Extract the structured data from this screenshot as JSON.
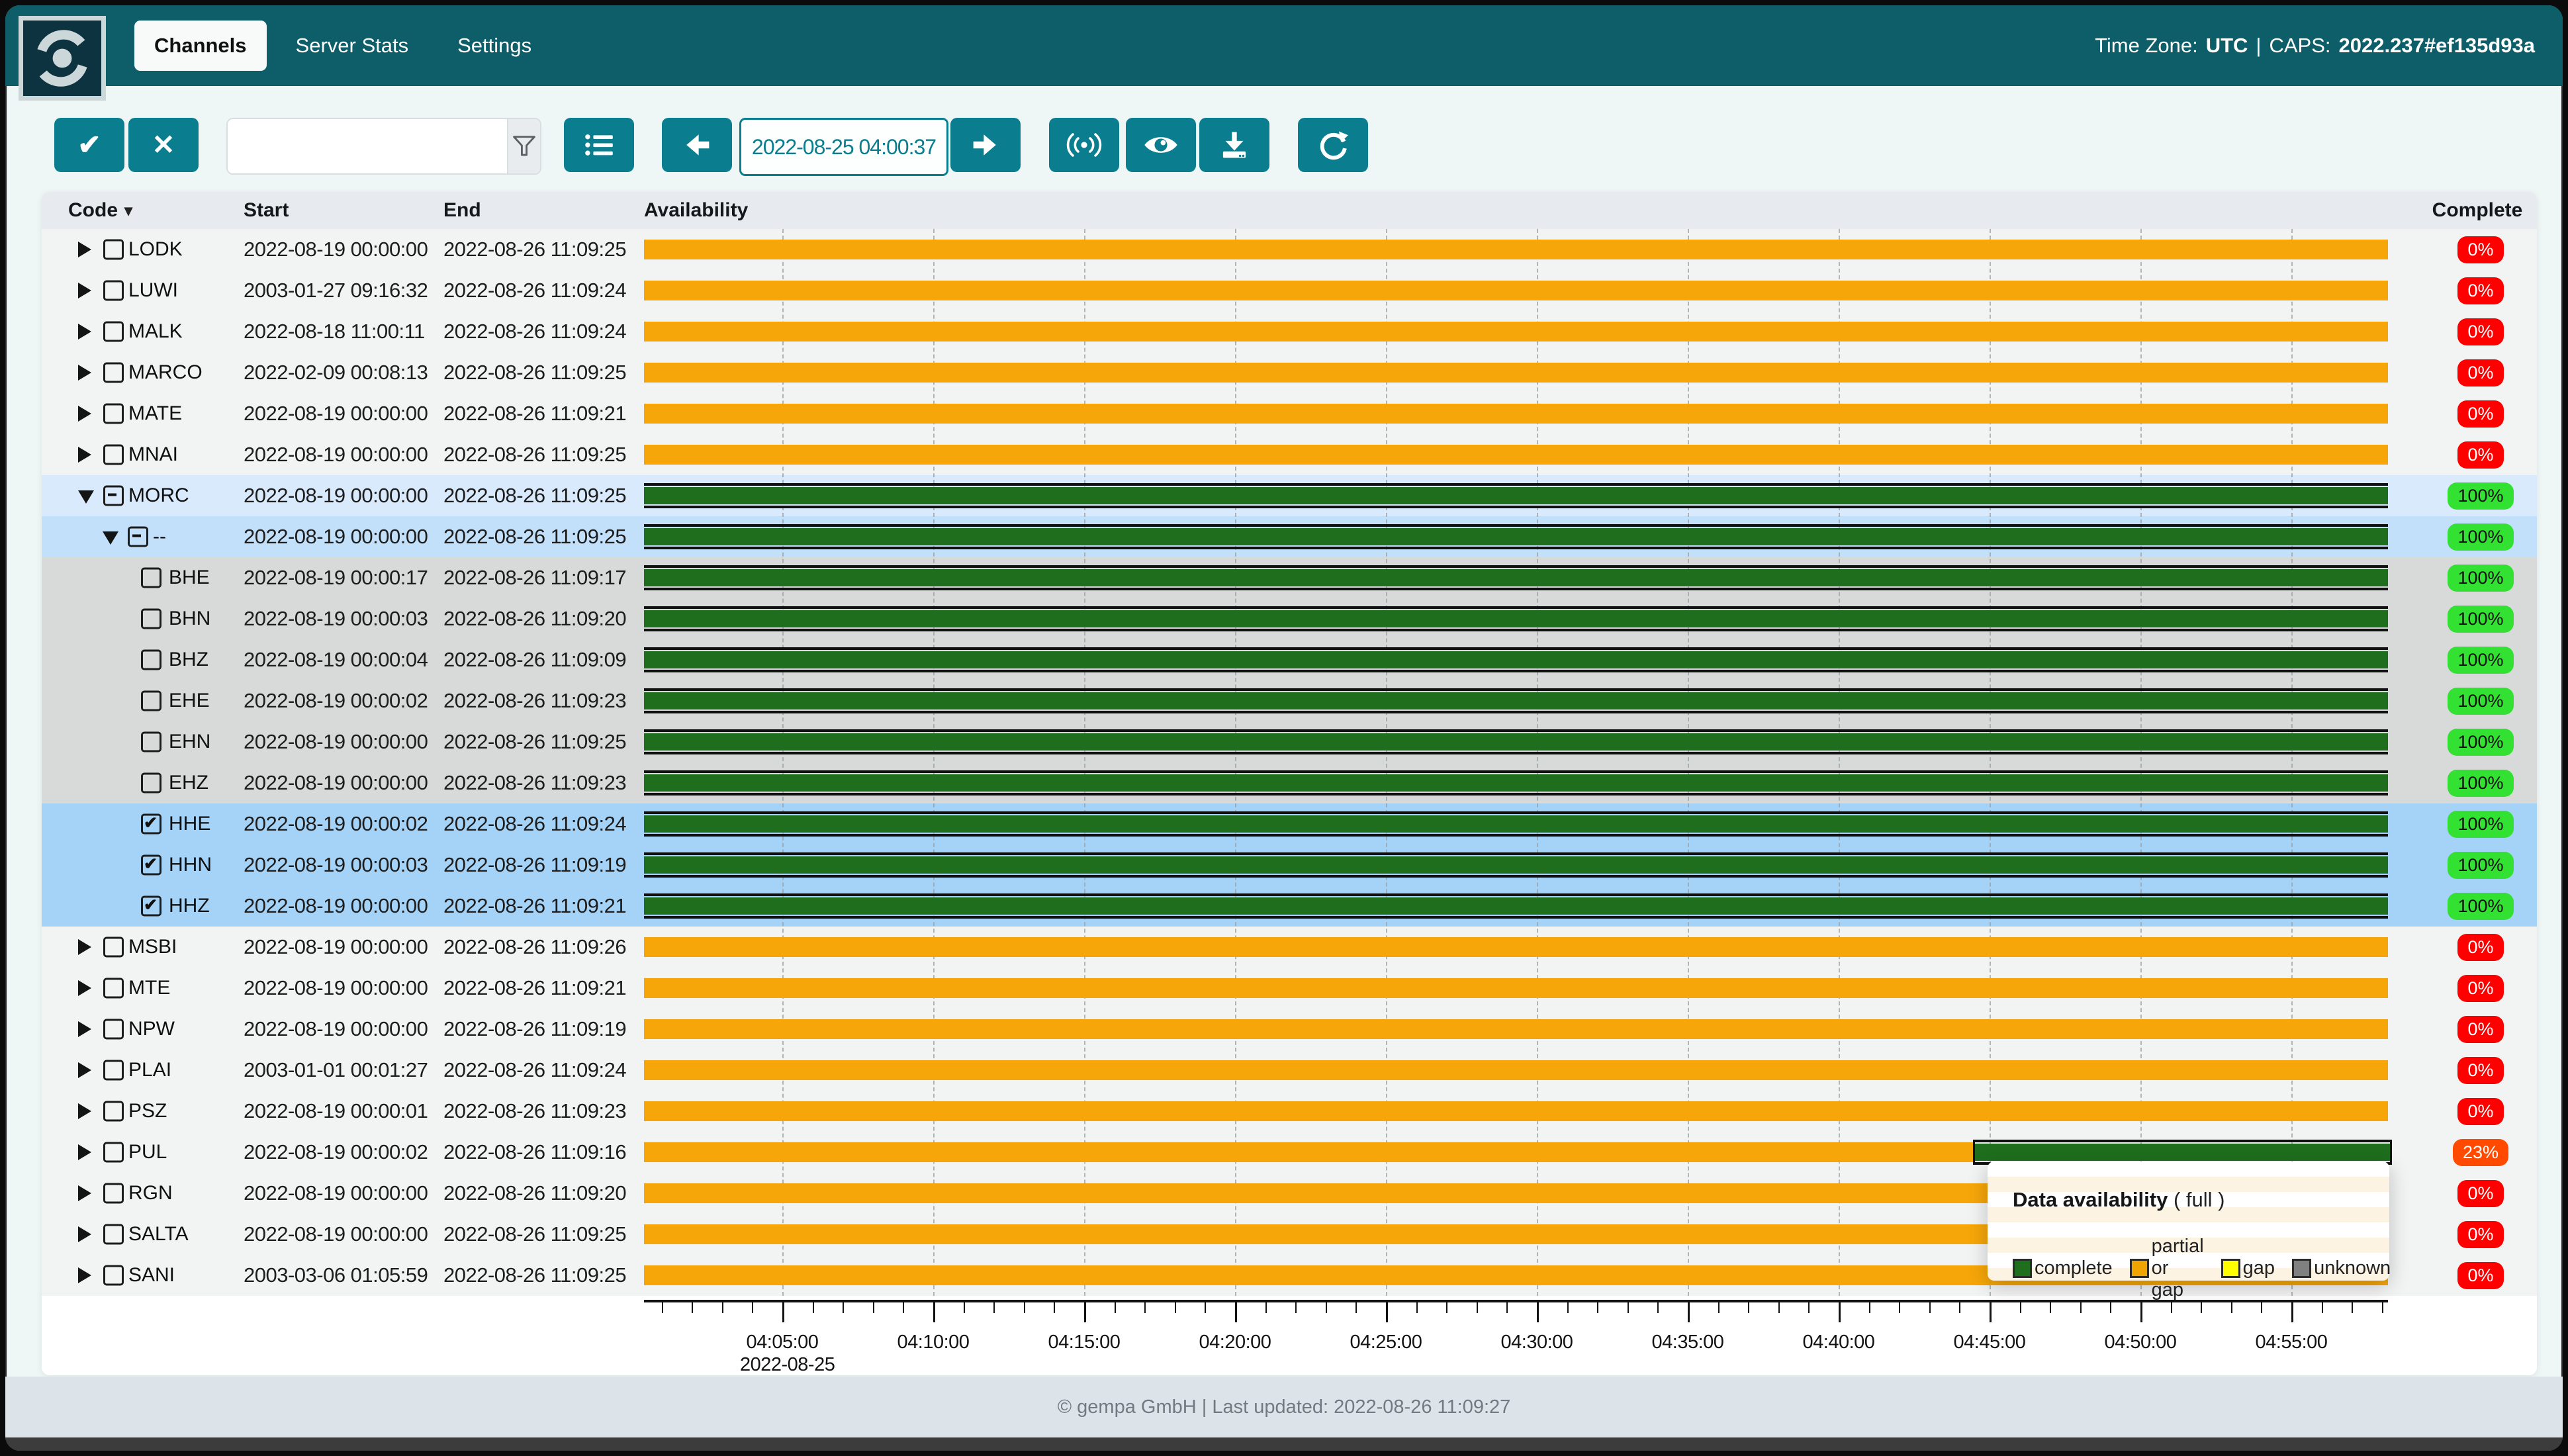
{
  "navbar": {
    "tabs": [
      {
        "label": "Channels",
        "active": true
      },
      {
        "label": "Server Stats",
        "active": false
      },
      {
        "label": "Settings",
        "active": false
      }
    ],
    "timezone_label": "Time Zone:",
    "timezone_value": "UTC",
    "separator": "|",
    "caps_label": "CAPS:",
    "caps_value": "2022.237#ef135d93a"
  },
  "toolbar": {
    "confirm_glyph": "✔",
    "cancel_glyph": "✕",
    "search_value": "",
    "search_placeholder": "",
    "datetime_value": "2022-08-25 04:00:37"
  },
  "table": {
    "columns": {
      "code": "Code",
      "start": "Start",
      "end": "End",
      "availability": "Availability",
      "complete": "Complete"
    },
    "rows": [
      {
        "code": "LODK",
        "start": "2022-08-19 00:00:00",
        "end": "2022-08-26 11:09:25",
        "complete": "0%",
        "badge": "red",
        "level": 0,
        "caret": "right",
        "checkbox": "unchecked",
        "bg": "",
        "availability": [
          {
            "state": "partial or gap",
            "from": 0,
            "to": 1
          }
        ]
      },
      {
        "code": "LUWI",
        "start": "2003-01-27 09:16:32",
        "end": "2022-08-26 11:09:24",
        "complete": "0%",
        "badge": "red",
        "level": 0,
        "caret": "right",
        "checkbox": "unchecked",
        "bg": "",
        "availability": [
          {
            "state": "partial or gap",
            "from": 0,
            "to": 1
          }
        ]
      },
      {
        "code": "MALK",
        "start": "2022-08-18 11:00:11",
        "end": "2022-08-26 11:09:24",
        "complete": "0%",
        "badge": "red",
        "level": 0,
        "caret": "right",
        "checkbox": "unchecked",
        "bg": "",
        "availability": [
          {
            "state": "partial or gap",
            "from": 0,
            "to": 1
          }
        ]
      },
      {
        "code": "MARCO",
        "start": "2022-02-09 00:08:13",
        "end": "2022-08-26 11:09:25",
        "complete": "0%",
        "badge": "red",
        "level": 0,
        "caret": "right",
        "checkbox": "unchecked",
        "bg": "",
        "availability": [
          {
            "state": "partial or gap",
            "from": 0,
            "to": 1
          }
        ]
      },
      {
        "code": "MATE",
        "start": "2022-08-19 00:00:00",
        "end": "2022-08-26 11:09:21",
        "complete": "0%",
        "badge": "red",
        "level": 0,
        "caret": "right",
        "checkbox": "unchecked",
        "bg": "",
        "availability": [
          {
            "state": "partial or gap",
            "from": 0,
            "to": 1
          }
        ]
      },
      {
        "code": "MNAI",
        "start": "2022-08-19 00:00:00",
        "end": "2022-08-26 11:09:25",
        "complete": "0%",
        "badge": "red",
        "level": 0,
        "caret": "right",
        "checkbox": "unchecked",
        "bg": "",
        "availability": [
          {
            "state": "partial or gap",
            "from": 0,
            "to": 1
          }
        ]
      },
      {
        "code": "MORC",
        "start": "2022-08-19 00:00:00",
        "end": "2022-08-26 11:09:25",
        "complete": "100%",
        "badge": "green",
        "level": 0,
        "caret": "down",
        "checkbox": "indeterminate",
        "bg": "sel1",
        "availability": [
          {
            "state": "complete",
            "from": 0,
            "to": 1
          }
        ]
      },
      {
        "code": "--",
        "start": "2022-08-19 00:00:00",
        "end": "2022-08-26 11:09:25",
        "complete": "100%",
        "badge": "green",
        "level": 1,
        "caret": "down",
        "checkbox": "indeterminate",
        "bg": "sel2",
        "availability": [
          {
            "state": "complete",
            "from": 0,
            "to": 1
          }
        ]
      },
      {
        "code": "BHE",
        "start": "2022-08-19 00:00:17",
        "end": "2022-08-26 11:09:17",
        "complete": "100%",
        "badge": "green",
        "level": 2,
        "caret": "none",
        "checkbox": "unchecked",
        "bg": "chgrey",
        "availability": [
          {
            "state": "complete",
            "from": 0,
            "to": 1
          }
        ]
      },
      {
        "code": "BHN",
        "start": "2022-08-19 00:00:03",
        "end": "2022-08-26 11:09:20",
        "complete": "100%",
        "badge": "green",
        "level": 2,
        "caret": "none",
        "checkbox": "unchecked",
        "bg": "chgrey",
        "availability": [
          {
            "state": "complete",
            "from": 0,
            "to": 1
          }
        ]
      },
      {
        "code": "BHZ",
        "start": "2022-08-19 00:00:04",
        "end": "2022-08-26 11:09:09",
        "complete": "100%",
        "badge": "green",
        "level": 2,
        "caret": "none",
        "checkbox": "unchecked",
        "bg": "chgrey",
        "availability": [
          {
            "state": "complete",
            "from": 0,
            "to": 1
          }
        ]
      },
      {
        "code": "EHE",
        "start": "2022-08-19 00:00:02",
        "end": "2022-08-26 11:09:23",
        "complete": "100%",
        "badge": "green",
        "level": 2,
        "caret": "none",
        "checkbox": "unchecked",
        "bg": "chgrey",
        "availability": [
          {
            "state": "complete",
            "from": 0,
            "to": 1
          }
        ]
      },
      {
        "code": "EHN",
        "start": "2022-08-19 00:00:00",
        "end": "2022-08-26 11:09:25",
        "complete": "100%",
        "badge": "green",
        "level": 2,
        "caret": "none",
        "checkbox": "unchecked",
        "bg": "chgrey",
        "availability": [
          {
            "state": "complete",
            "from": 0,
            "to": 1
          }
        ]
      },
      {
        "code": "EHZ",
        "start": "2022-08-19 00:00:00",
        "end": "2022-08-26 11:09:23",
        "complete": "100%",
        "badge": "green",
        "level": 2,
        "caret": "none",
        "checkbox": "unchecked",
        "bg": "chgrey",
        "availability": [
          {
            "state": "complete",
            "from": 0,
            "to": 1
          }
        ]
      },
      {
        "code": "HHE",
        "start": "2022-08-19 00:00:02",
        "end": "2022-08-26 11:09:24",
        "complete": "100%",
        "badge": "green",
        "level": 2,
        "caret": "none",
        "checkbox": "checked",
        "bg": "chblue",
        "availability": [
          {
            "state": "complete",
            "from": 0,
            "to": 1
          }
        ]
      },
      {
        "code": "HHN",
        "start": "2022-08-19 00:00:03",
        "end": "2022-08-26 11:09:19",
        "complete": "100%",
        "badge": "green",
        "level": 2,
        "caret": "none",
        "checkbox": "checked",
        "bg": "chblue",
        "availability": [
          {
            "state": "complete",
            "from": 0,
            "to": 1
          }
        ]
      },
      {
        "code": "HHZ",
        "start": "2022-08-19 00:00:00",
        "end": "2022-08-26 11:09:21",
        "complete": "100%",
        "badge": "green",
        "level": 2,
        "caret": "none",
        "checkbox": "checked",
        "bg": "chblue",
        "availability": [
          {
            "state": "complete",
            "from": 0,
            "to": 1
          }
        ]
      },
      {
        "code": "MSBI",
        "start": "2022-08-19 00:00:00",
        "end": "2022-08-26 11:09:26",
        "complete": "0%",
        "badge": "red",
        "level": 0,
        "caret": "right",
        "checkbox": "unchecked",
        "bg": "",
        "availability": [
          {
            "state": "partial or gap",
            "from": 0,
            "to": 1
          }
        ]
      },
      {
        "code": "MTE",
        "start": "2022-08-19 00:00:00",
        "end": "2022-08-26 11:09:21",
        "complete": "0%",
        "badge": "red",
        "level": 0,
        "caret": "right",
        "checkbox": "unchecked",
        "bg": "",
        "availability": [
          {
            "state": "partial or gap",
            "from": 0,
            "to": 1
          }
        ]
      },
      {
        "code": "NPW",
        "start": "2022-08-19 00:00:00",
        "end": "2022-08-26 11:09:19",
        "complete": "0%",
        "badge": "red",
        "level": 0,
        "caret": "right",
        "checkbox": "unchecked",
        "bg": "",
        "availability": [
          {
            "state": "partial or gap",
            "from": 0,
            "to": 1
          }
        ]
      },
      {
        "code": "PLAI",
        "start": "2003-01-01 00:01:27",
        "end": "2022-08-26 11:09:24",
        "complete": "0%",
        "badge": "red",
        "level": 0,
        "caret": "right",
        "checkbox": "unchecked",
        "bg": "",
        "availability": [
          {
            "state": "partial or gap",
            "from": 0,
            "to": 1
          }
        ]
      },
      {
        "code": "PSZ",
        "start": "2022-08-19 00:00:01",
        "end": "2022-08-26 11:09:23",
        "complete": "0%",
        "badge": "red",
        "level": 0,
        "caret": "right",
        "checkbox": "unchecked",
        "bg": "",
        "availability": [
          {
            "state": "partial or gap",
            "from": 0,
            "to": 1
          }
        ]
      },
      {
        "code": "PUL",
        "start": "2022-08-19 00:00:02",
        "end": "2022-08-26 11:09:16",
        "complete": "23%",
        "badge": "orange",
        "level": 0,
        "caret": "right",
        "checkbox": "unchecked",
        "bg": "",
        "availability": [
          {
            "state": "partial or gap",
            "from": 0,
            "to": 0.762
          },
          {
            "state": "complete",
            "from": 0.762,
            "to": 1,
            "boxed": true
          }
        ]
      },
      {
        "code": "RGN",
        "start": "2022-08-19 00:00:00",
        "end": "2022-08-26 11:09:20",
        "complete": "0%",
        "badge": "red",
        "level": 0,
        "caret": "right",
        "checkbox": "unchecked",
        "bg": "",
        "availability": [
          {
            "state": "partial or gap",
            "from": 0,
            "to": 1
          }
        ]
      },
      {
        "code": "SALTA",
        "start": "2022-08-19 00:00:00",
        "end": "2022-08-26 11:09:25",
        "complete": "0%",
        "badge": "red",
        "level": 0,
        "caret": "right",
        "checkbox": "unchecked",
        "bg": "",
        "availability": [
          {
            "state": "partial or gap",
            "from": 0,
            "to": 1
          }
        ]
      },
      {
        "code": "SANI",
        "start": "2003-03-06 01:05:59",
        "end": "2022-08-26 11:09:25",
        "complete": "0%",
        "badge": "red",
        "level": 0,
        "caret": "right",
        "checkbox": "unchecked",
        "bg": "",
        "availability": [
          {
            "state": "partial or gap",
            "from": 0,
            "to": 1
          }
        ]
      }
    ]
  },
  "timeline": {
    "major_tick_labels": [
      "04:05:00",
      "04:10:00",
      "04:15:00",
      "04:20:00",
      "04:25:00",
      "04:30:00",
      "04:35:00",
      "04:40:00",
      "04:45:00",
      "04:50:00",
      "04:55:00"
    ],
    "date_label": "2022-08-25",
    "minor_tick_interval": "1 minute"
  },
  "tooltip": {
    "title": "Data availability",
    "subtitle": "( full )",
    "legend": [
      {
        "label": "complete",
        "color": "#1e6e1e"
      },
      {
        "label": "partial or gap",
        "color": "#f0a400"
      },
      {
        "label": "gap",
        "color": "#ffff00"
      },
      {
        "label": "unknown",
        "color": "#808080"
      }
    ]
  },
  "footer": {
    "text": "© gempa GmbH | Last updated: 2022-08-26 11:09:27"
  },
  "colors": {
    "navbar": "#0d5e68",
    "button": "#0a7e8e",
    "partial_bar": "#f6a609",
    "complete_bar": "#1e6e1e",
    "badge_red": "#fe0000",
    "badge_green": "#32e132",
    "badge_orange": "#ff4a00",
    "row_selected_light": "#d9eafc",
    "row_selected_mid": "#c2e0fa",
    "row_channel_grey": "#d8d9d9",
    "row_channel_blue": "#a5d3f7"
  }
}
